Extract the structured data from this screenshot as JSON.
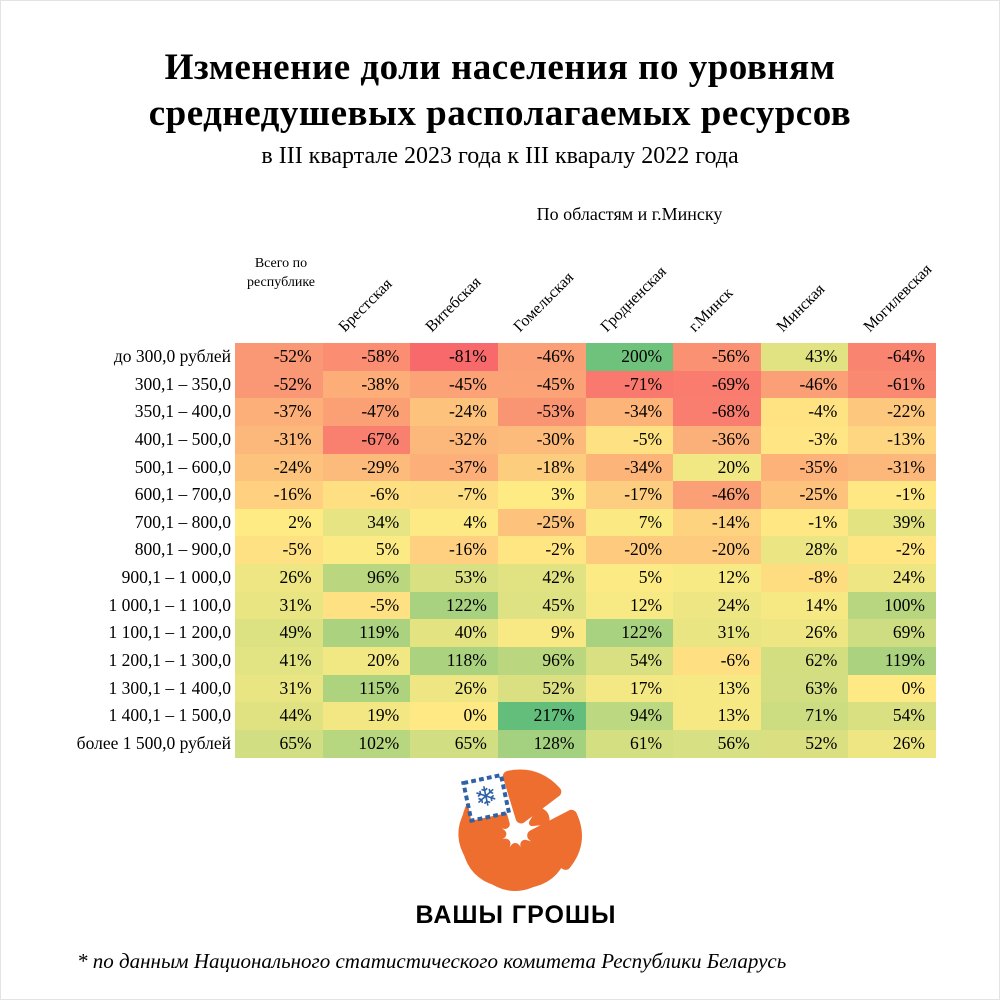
{
  "title": {
    "line1": "Изменение доли населения по уровням",
    "line2": "среднедушевых располагаемых ресурсов",
    "subtitle": "в III квартале 2023 года к III кваралу 2022 года"
  },
  "header": {
    "regions_title": "По областям и г.Минску",
    "total_header": "Всего по\nреспублике"
  },
  "chart_data": {
    "type": "heatmap",
    "title": "Изменение доли населения по уровням среднедушевых располагаемых ресурсов в III квартале 2023 года к III кваралу 2022 года",
    "columns": [
      "Всего по республике",
      "Брестская",
      "Витебская",
      "Гомельская",
      "Гродненская",
      "г.Минск",
      "Минская",
      "Могилевская"
    ],
    "rotated_columns": [
      "Брестская",
      "Витебская",
      "Гомельская",
      "Гродненская",
      "г.Минск",
      "Минская",
      "Могилевская"
    ],
    "rows": [
      "до 300,0 рублей",
      "300,1 – 350,0",
      "350,1 – 400,0",
      "400,1 – 500,0",
      "500,1 – 600,0",
      "600,1 – 700,0",
      "700,1 – 800,0",
      "800,1 – 900,0",
      "900,1 – 1 000,0",
      "1 000,1 – 1 100,0",
      "1 100,1 – 1 200,0",
      "1 200,1 – 1 300,0",
      "1 300,1 – 1 400,0",
      "1 400,1 – 1 500,0",
      "более 1 500,0 рублей"
    ],
    "values": [
      [
        -52,
        -58,
        -81,
        -46,
        200,
        -56,
        43,
        -64
      ],
      [
        -52,
        -38,
        -45,
        -45,
        -71,
        -69,
        -46,
        -61
      ],
      [
        -37,
        -47,
        -24,
        -53,
        -34,
        -68,
        -4,
        -22
      ],
      [
        -31,
        -67,
        -32,
        -30,
        -5,
        -36,
        -3,
        -13
      ],
      [
        -24,
        -29,
        -37,
        -18,
        -34,
        20,
        -35,
        -31
      ],
      [
        -16,
        -6,
        -7,
        3,
        -17,
        -46,
        -25,
        -1
      ],
      [
        2,
        34,
        4,
        -25,
        7,
        -14,
        -1,
        39
      ],
      [
        -5,
        5,
        -16,
        -2,
        -20,
        -20,
        28,
        -2
      ],
      [
        26,
        96,
        53,
        42,
        5,
        12,
        -8,
        24
      ],
      [
        31,
        -5,
        122,
        45,
        12,
        24,
        14,
        100
      ],
      [
        49,
        119,
        40,
        9,
        122,
        31,
        26,
        69
      ],
      [
        41,
        20,
        118,
        96,
        54,
        -6,
        62,
        119
      ],
      [
        31,
        115,
        26,
        52,
        17,
        13,
        63,
        0
      ],
      [
        44,
        19,
        0,
        217,
        94,
        13,
        71,
        54
      ],
      [
        65,
        102,
        65,
        128,
        61,
        56,
        52,
        26
      ]
    ],
    "value_format": "percent",
    "color_scale": {
      "min": -81,
      "mid": 1,
      "max": 217,
      "min_color": "#F8696B",
      "mid_color": "#FFEB84",
      "max_color": "#63BE7B"
    },
    "layout": {
      "grid": false,
      "legend": "none",
      "cell_text_align": "right"
    }
  },
  "logo": {
    "text": "ВАШЫ ГРОШЫ",
    "orange": "#ED6E2E",
    "blue": "#2E62A6",
    "ornament_icon": "snowflake-ornament"
  },
  "footnote": "* по данным Национального статистического комитета Республики Беларусь"
}
